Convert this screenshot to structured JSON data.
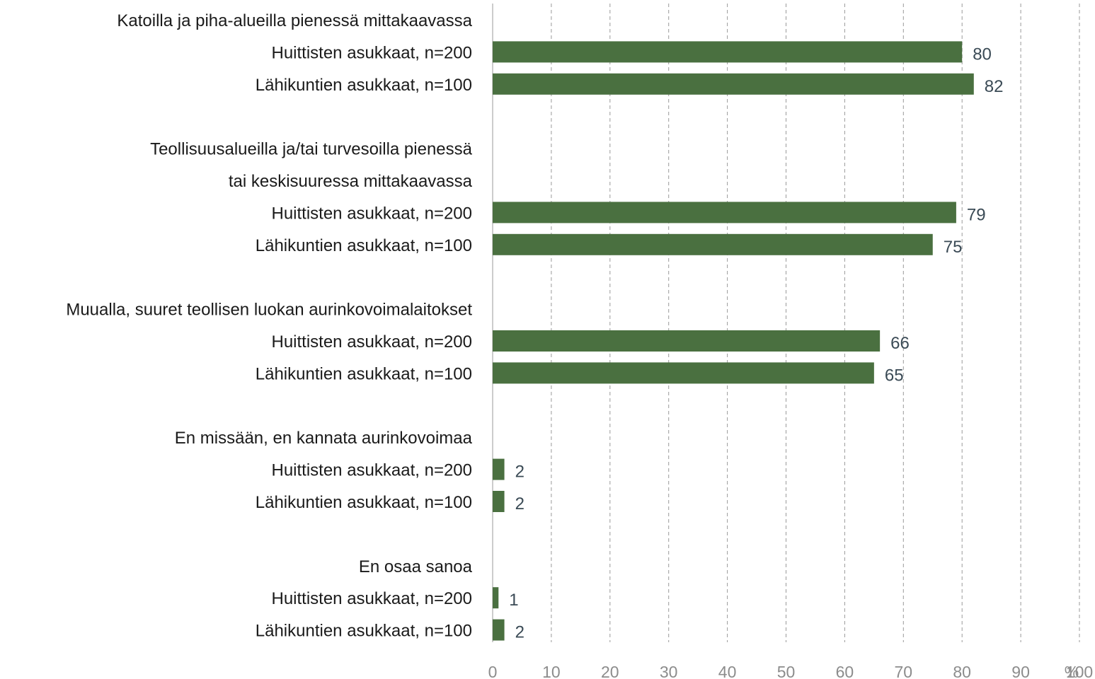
{
  "chart_data": {
    "type": "bar",
    "orientation": "horizontal",
    "xlabel": "%",
    "xlim": [
      0,
      100
    ],
    "xticks": [
      "0",
      "10",
      "20",
      "30",
      "40",
      "50",
      "60",
      "70",
      "80",
      "90",
      "100"
    ],
    "grid": true,
    "bar_color": "#4a7040",
    "groups": [
      {
        "label_lines": [
          "Katoilla ja piha-alueilla pienessä mittakaavassa"
        ],
        "rows": [
          {
            "label": "Huittisten asukkaat, n=200",
            "value": 80
          },
          {
            "label": "Lähikuntien asukkaat, n=100",
            "value": 82
          }
        ]
      },
      {
        "label_lines": [
          "Teollisuusalueilla ja/tai turvesoilla pienessä",
          "tai keskisuuressa mittakaavassa"
        ],
        "rows": [
          {
            "label": "Huittisten asukkaat, n=200",
            "value": 79
          },
          {
            "label": "Lähikuntien asukkaat, n=100",
            "value": 75
          }
        ]
      },
      {
        "label_lines": [
          "Muualla, suuret teollisen luokan aurinkovoimalaitokset"
        ],
        "rows": [
          {
            "label": "Huittisten asukkaat, n=200",
            "value": 66
          },
          {
            "label": "Lähikuntien asukkaat, n=100",
            "value": 65
          }
        ]
      },
      {
        "label_lines": [
          "En missään, en kannata aurinkovoimaa"
        ],
        "rows": [
          {
            "label": "Huittisten asukkaat, n=200",
            "value": 2
          },
          {
            "label": "Lähikuntien asukkaat, n=100",
            "value": 2
          }
        ]
      },
      {
        "label_lines": [
          "En osaa sanoa"
        ],
        "rows": [
          {
            "label": "Huittisten asukkaat, n=200",
            "value": 1
          },
          {
            "label": "Lähikuntien asukkaat, n=100",
            "value": 2
          }
        ]
      }
    ]
  }
}
